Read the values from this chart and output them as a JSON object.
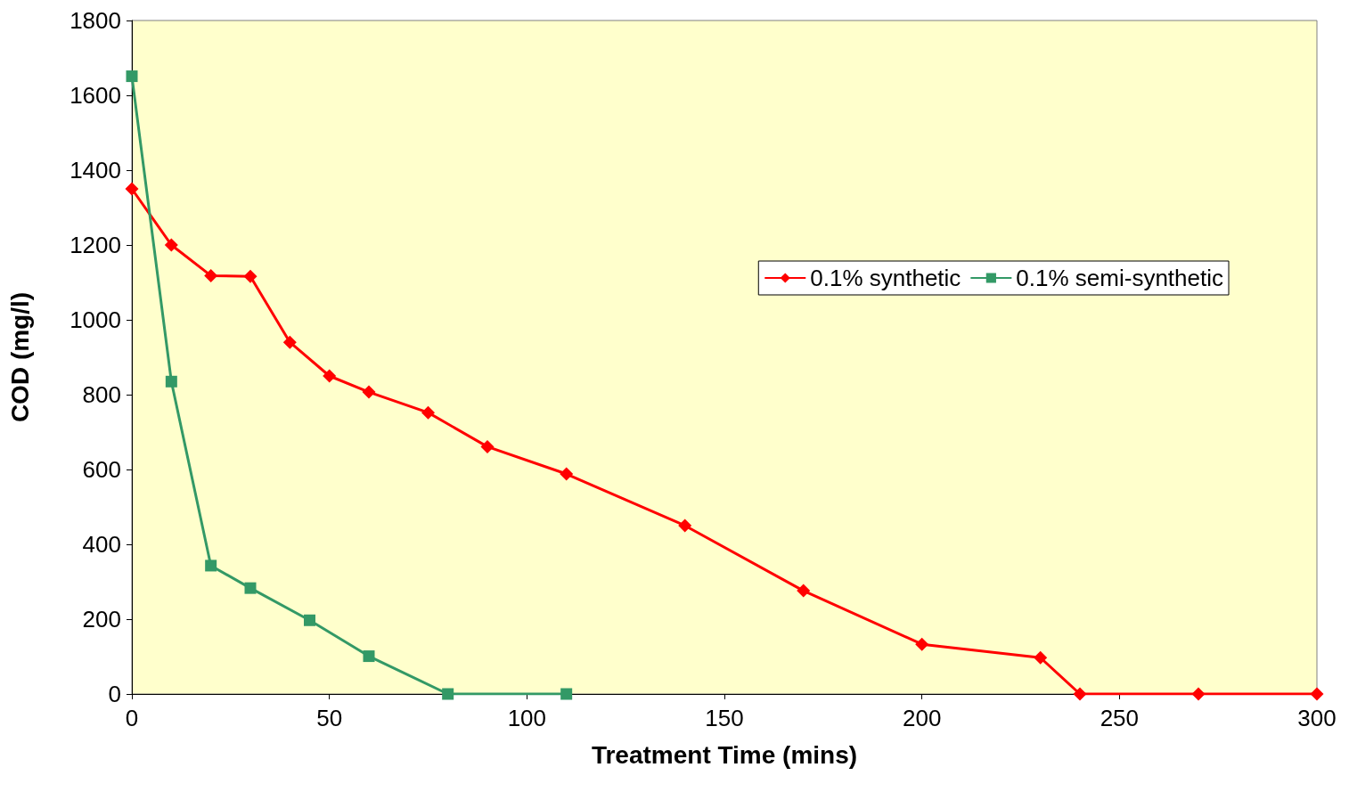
{
  "chart_data": {
    "type": "line",
    "xlabel": "Treatment Time (mins)",
    "ylabel": "COD (mg/l)",
    "xlim": [
      0,
      300
    ],
    "xticks": [
      0,
      50,
      100,
      150,
      200,
      250,
      300
    ],
    "ylim": [
      0,
      1800
    ],
    "yticks": [
      0,
      200,
      400,
      600,
      800,
      1000,
      1200,
      1400,
      1600,
      1800
    ],
    "grid": false,
    "legend": "top right",
    "series": [
      {
        "name": "0.1% synthetic",
        "color": "#ff0000",
        "marker": "diamond",
        "x": [
          0,
          10,
          20,
          30,
          40,
          50,
          60,
          75,
          90,
          110,
          140,
          170,
          200,
          230,
          240,
          270,
          300
        ],
        "values": [
          1350,
          1200,
          1118,
          1116,
          940,
          850,
          807,
          752,
          661,
          588,
          450,
          276,
          133,
          97,
          0,
          0,
          0
        ]
      },
      {
        "name": "0.1% semi-synthetic",
        "color": "#339966",
        "marker": "square",
        "x": [
          0,
          10,
          20,
          30,
          45,
          60,
          80,
          110
        ],
        "values": [
          1651,
          835,
          343,
          283,
          197,
          101,
          0,
          0
        ]
      }
    ]
  }
}
